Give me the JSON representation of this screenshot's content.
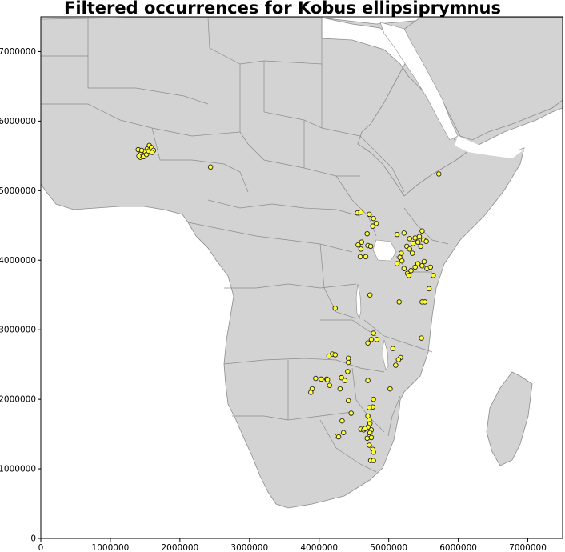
{
  "title": "Filtered occurrences for Kobus ellipsiprymnus",
  "colors": {
    "land": "#d3d3d3",
    "border": "#8c8c8c",
    "water": "#ffffff",
    "marker_fill": "#ffff33",
    "marker_edge": "#222222",
    "axes": "#000000"
  },
  "chart_data": {
    "type": "scatter",
    "xlim": [
      0,
      7500000
    ],
    "ylim": [
      0,
      7500000
    ],
    "x_ticks": [
      0,
      1000000,
      2000000,
      3000000,
      4000000,
      5000000,
      6000000,
      7000000
    ],
    "y_ticks": [
      0,
      1000000,
      2000000,
      3000000,
      4000000,
      5000000,
      6000000,
      7000000
    ],
    "x_tick_labels": [
      "0",
      "1000000",
      "2000000",
      "3000000",
      "4000000",
      "5000000",
      "6000000",
      "7000000"
    ],
    "y_tick_labels": [
      "0",
      "1000000",
      "2000000",
      "3000000",
      "4000000",
      "5000000",
      "6000000",
      "7000000"
    ],
    "grid": false,
    "basemap": "country outlines of Africa and the Arabian Peninsula",
    "points": [
      [
        1400000,
        5590000
      ],
      [
        1440000,
        5530000
      ],
      [
        1470000,
        5510000
      ],
      [
        1500000,
        5560000
      ],
      [
        1530000,
        5600000
      ],
      [
        1560000,
        5650000
      ],
      [
        1590000,
        5620000
      ],
      [
        1620000,
        5580000
      ],
      [
        1430000,
        5480000
      ],
      [
        1480000,
        5490000
      ],
      [
        1520000,
        5520000
      ],
      [
        1550000,
        5570000
      ],
      [
        1600000,
        5550000
      ],
      [
        1410000,
        5500000
      ],
      [
        1450000,
        5580000
      ],
      [
        2440000,
        5340000
      ],
      [
        5720000,
        5240000
      ],
      [
        4550000,
        4680000
      ],
      [
        4600000,
        4690000
      ],
      [
        4720000,
        4660000
      ],
      [
        4780000,
        4600000
      ],
      [
        4820000,
        4530000
      ],
      [
        4770000,
        4490000
      ],
      [
        4690000,
        4380000
      ],
      [
        4560000,
        4220000
      ],
      [
        4610000,
        4260000
      ],
      [
        4700000,
        4210000
      ],
      [
        4740000,
        4200000
      ],
      [
        4590000,
        4050000
      ],
      [
        4670000,
        4050000
      ],
      [
        4600000,
        4160000
      ],
      [
        5120000,
        4370000
      ],
      [
        5220000,
        4390000
      ],
      [
        5300000,
        4310000
      ],
      [
        5380000,
        4320000
      ],
      [
        5440000,
        4340000
      ],
      [
        5480000,
        4420000
      ],
      [
        5500000,
        4290000
      ],
      [
        5420000,
        4260000
      ],
      [
        5350000,
        4240000
      ],
      [
        5260000,
        4200000
      ],
      [
        5300000,
        4160000
      ],
      [
        5340000,
        4100000
      ],
      [
        5460000,
        4200000
      ],
      [
        5540000,
        4270000
      ],
      [
        5180000,
        4100000
      ],
      [
        5160000,
        4040000
      ],
      [
        5190000,
        3990000
      ],
      [
        5120000,
        3950000
      ],
      [
        5220000,
        3880000
      ],
      [
        5270000,
        3810000
      ],
      [
        5290000,
        3780000
      ],
      [
        5320000,
        3850000
      ],
      [
        5380000,
        3900000
      ],
      [
        5420000,
        3950000
      ],
      [
        5480000,
        3920000
      ],
      [
        5510000,
        3980000
      ],
      [
        5550000,
        3880000
      ],
      [
        5600000,
        3900000
      ],
      [
        5640000,
        3780000
      ],
      [
        5580000,
        3590000
      ],
      [
        5480000,
        3400000
      ],
      [
        5520000,
        3400000
      ],
      [
        5150000,
        3400000
      ],
      [
        4730000,
        3500000
      ],
      [
        4230000,
        3310000
      ],
      [
        4780000,
        2950000
      ],
      [
        4750000,
        2860000
      ],
      [
        4830000,
        2860000
      ],
      [
        4700000,
        2810000
      ],
      [
        5470000,
        2880000
      ],
      [
        5060000,
        2730000
      ],
      [
        4190000,
        2650000
      ],
      [
        4140000,
        2620000
      ],
      [
        4230000,
        2640000
      ],
      [
        4420000,
        2590000
      ],
      [
        4420000,
        2530000
      ],
      [
        5170000,
        2600000
      ],
      [
        5140000,
        2570000
      ],
      [
        5100000,
        2490000
      ],
      [
        4410000,
        2400000
      ],
      [
        3950000,
        2300000
      ],
      [
        4030000,
        2290000
      ],
      [
        4110000,
        2290000
      ],
      [
        4120000,
        2280000
      ],
      [
        4320000,
        2310000
      ],
      [
        4370000,
        2270000
      ],
      [
        4700000,
        2270000
      ],
      [
        3900000,
        2150000
      ],
      [
        3880000,
        2100000
      ],
      [
        4150000,
        2200000
      ],
      [
        4300000,
        2150000
      ],
      [
        5020000,
        2150000
      ],
      [
        4780000,
        2000000
      ],
      [
        4420000,
        1980000
      ],
      [
        4770000,
        1890000
      ],
      [
        4720000,
        1880000
      ],
      [
        4460000,
        1800000
      ],
      [
        4700000,
        1760000
      ],
      [
        4720000,
        1700000
      ],
      [
        4730000,
        1650000
      ],
      [
        4700000,
        1600000
      ],
      [
        4750000,
        1560000
      ],
      [
        4730000,
        1520000
      ],
      [
        4720000,
        1460000
      ],
      [
        4690000,
        1440000
      ],
      [
        4750000,
        1450000
      ],
      [
        4330000,
        1690000
      ],
      [
        4600000,
        1570000
      ],
      [
        4640000,
        1560000
      ],
      [
        4350000,
        1520000
      ],
      [
        4260000,
        1470000
      ],
      [
        4280000,
        1460000
      ],
      [
        4770000,
        1280000
      ],
      [
        4780000,
        1240000
      ],
      [
        4720000,
        1340000
      ],
      [
        4740000,
        1120000
      ],
      [
        4780000,
        1120000
      ],
      [
        4660000,
        1580000
      ]
    ]
  }
}
